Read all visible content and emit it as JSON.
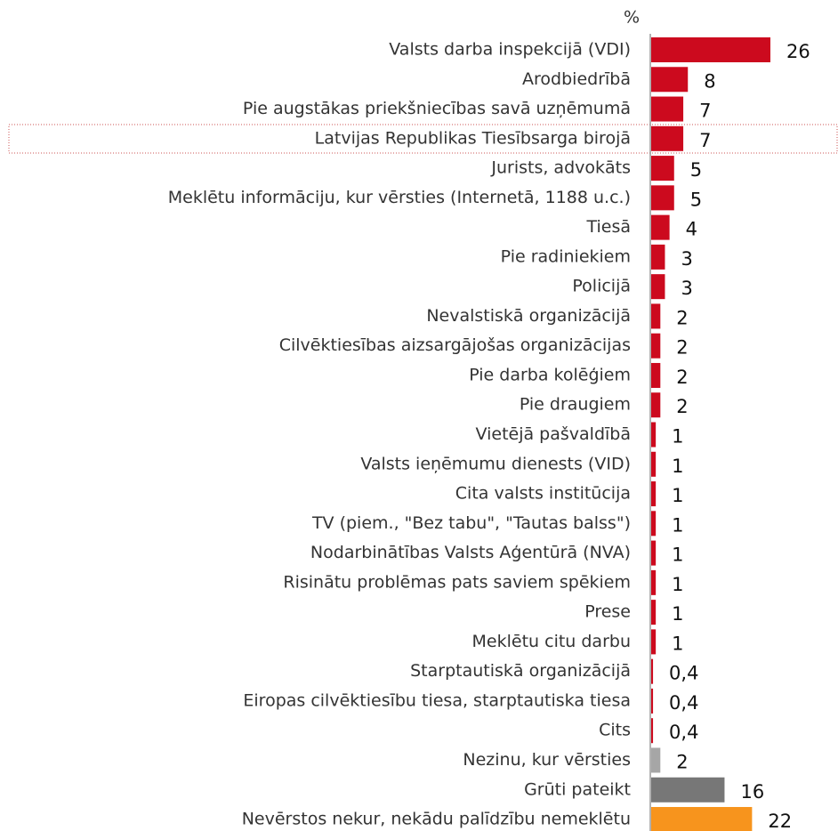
{
  "chart_data": {
    "type": "bar",
    "orientation": "horizontal",
    "unit": "%",
    "categories": [
      "Valsts darba inspekcijā (VDI)",
      "Arodbiedrībā",
      "Pie augstākas priekšniecības savā uzņēmumā",
      "Latvijas Republikas Tiesībsarga birojā",
      "Jurists, advokāts",
      "Meklētu informāciju, kur vērsties (Internetā, 1188 u.c.)",
      "Tiesā",
      "Pie radiniekiem",
      "Policijā",
      "Nevalstiskā organizācijā",
      "Cilvēktiesības aizsargājošas organizācijas",
      "Pie darba kolēģiem",
      "Pie draugiem",
      "Vietējā pašvaldībā",
      "Valsts ieņēmumu dienests (VID)",
      "Cita valsts institūcija",
      "TV (piem., \"Bez tabu\", \"Tautas balss\")",
      "Nodarbinātības Valsts Aģentūrā (NVA)",
      "Risinātu problēmas pats saviem spēkiem",
      "Prese",
      "Meklētu citu darbu",
      "Starptautiskā organizācijā",
      "Eiropas cilvēktiesību tiesa, starptautiska tiesa",
      "Cits",
      "Nezinu, kur vērsties",
      "Grūti pateikt",
      "Nevērstos nekur, nekādu palīdzību nemeklētu"
    ],
    "values": [
      26,
      8,
      7,
      7,
      5,
      5,
      4,
      3,
      3,
      2,
      2,
      2,
      2,
      1,
      1,
      1,
      1,
      1,
      1,
      1,
      1,
      0.4,
      0.4,
      0.4,
      2,
      16,
      22
    ],
    "value_labels": [
      "26",
      "8",
      "7",
      "7",
      "5",
      "5",
      "4",
      "3",
      "3",
      "2",
      "2",
      "2",
      "2",
      "1",
      "1",
      "1",
      "1",
      "1",
      "1",
      "1",
      "1",
      "0,4",
      "0,4",
      "0,4",
      "2",
      "16",
      "22"
    ],
    "colors": [
      "#cc0a1e",
      "#cc0a1e",
      "#cc0a1e",
      "#cc0a1e",
      "#cc0a1e",
      "#cc0a1e",
      "#cc0a1e",
      "#cc0a1e",
      "#cc0a1e",
      "#cc0a1e",
      "#cc0a1e",
      "#cc0a1e",
      "#cc0a1e",
      "#cc0a1e",
      "#cc0a1e",
      "#cc0a1e",
      "#cc0a1e",
      "#cc0a1e",
      "#cc0a1e",
      "#cc0a1e",
      "#cc0a1e",
      "#cc0a1e",
      "#cc0a1e",
      "#cc0a1e",
      "#a6a6a6",
      "#777777",
      "#f7941d"
    ]
  }
}
